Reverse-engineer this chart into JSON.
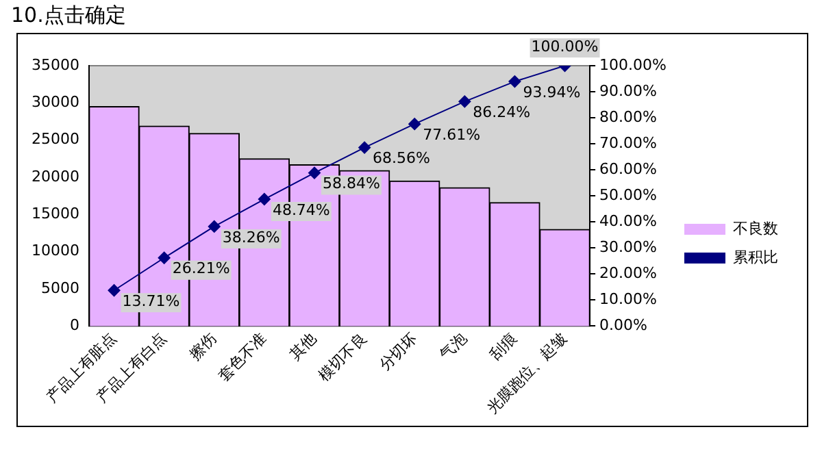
{
  "chart_data": {
    "type": "bar",
    "title": "10.点击确定",
    "categories": [
      "产品上有脏点",
      "产品上有白点",
      "擦伤",
      "套色不准",
      "其他",
      "模切不良",
      "分切坏",
      "气泡",
      "刮痕",
      "光膜跑位、起皱"
    ],
    "series": [
      {
        "name": "不良数",
        "color": "#e6b0ff",
        "values": [
          29500,
          26900,
          25900,
          22500,
          21700,
          20900,
          19500,
          18600,
          16600,
          13000
        ]
      },
      {
        "name": "累积比",
        "type": "line",
        "axis": "y2",
        "color": "#000080",
        "marker": "diamond",
        "values": [
          13.71,
          26.21,
          38.26,
          48.74,
          58.84,
          68.56,
          77.61,
          86.24,
          93.94,
          100.0
        ],
        "value_labels": [
          "13.71%",
          "26.21%",
          "38.26%",
          "48.74%",
          "58.84%",
          "68.56%",
          "77.61%",
          "86.24%",
          "93.94%",
          "100.00%"
        ]
      }
    ],
    "ylim": [
      0,
      35000
    ],
    "yticks": [
      0,
      5000,
      10000,
      15000,
      20000,
      25000,
      30000,
      35000
    ],
    "y2lim": [
      0,
      100
    ],
    "y2ticks": [
      {
        "value": 0,
        "label": "0.00%"
      },
      {
        "value": 10,
        "label": "10.00%"
      },
      {
        "value": 20,
        "label": "20.00%"
      },
      {
        "value": 30,
        "label": "30.00%"
      },
      {
        "value": 40,
        "label": "40.00%"
      },
      {
        "value": 50,
        "label": "50.00%"
      },
      {
        "value": 60,
        "label": "60.00%"
      },
      {
        "value": 70,
        "label": "70.00%"
      },
      {
        "value": 80,
        "label": "80.00%"
      },
      {
        "value": 90,
        "label": "90.00%"
      },
      {
        "value": 100,
        "label": "100.00%"
      }
    ],
    "grid": false,
    "legend": "right"
  }
}
